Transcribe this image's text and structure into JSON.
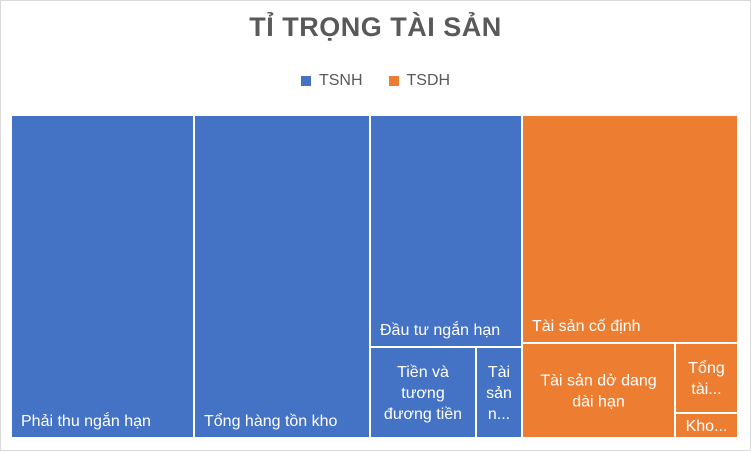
{
  "chart_data": {
    "type": "treemap",
    "title": "TỈ TRỌNG TÀI SẢN",
    "legend_position": "top",
    "series": [
      {
        "name": "TSNH",
        "color": "#4472C4"
      },
      {
        "name": "TSDH",
        "color": "#ED7D31"
      }
    ],
    "items": [
      {
        "group": "TSNH",
        "label": "Phải thu ngắn hạn",
        "label_lines": [
          "Phải thu ngắn hạn"
        ],
        "value": 24.6
      },
      {
        "group": "TSNH",
        "label": "Tổng hàng tồn kho",
        "label_lines": [
          "Tổng hàng tồn kho"
        ],
        "value": 24.0
      },
      {
        "group": "TSNH",
        "label": "Đầu tư ngắn hạn",
        "label_lines": [
          "Đầu tư ngắn hạn"
        ],
        "value": 10.2
      },
      {
        "group": "TSNH",
        "label": "Tiền và tương đương tiền",
        "label_lines": [
          "Tiền và",
          "tương",
          "đương tiền"
        ],
        "value": 6.5
      },
      {
        "group": "TSNH",
        "label": "Tài sản n...",
        "label_lines": [
          "Tài",
          "sản",
          "n..."
        ],
        "value": 2.6
      },
      {
        "group": "TSDH",
        "label": "Tài sản cố định",
        "label_lines": [
          "Tài sản cố định"
        ],
        "value": 19.1
      },
      {
        "group": "TSDH",
        "label": "Tài sản dở dang dài hạn",
        "label_lines": [
          "Tài sản dở dang",
          "dài hạn"
        ],
        "value": 9.6
      },
      {
        "group": "TSDH",
        "label": "Tổng tài...",
        "label_lines": [
          "Tổng",
          "tài..."
        ],
        "value": 2.6
      },
      {
        "group": "TSDH",
        "label": "Kho...",
        "label_lines": [
          "Kho..."
        ],
        "value": 0.8
      }
    ]
  }
}
